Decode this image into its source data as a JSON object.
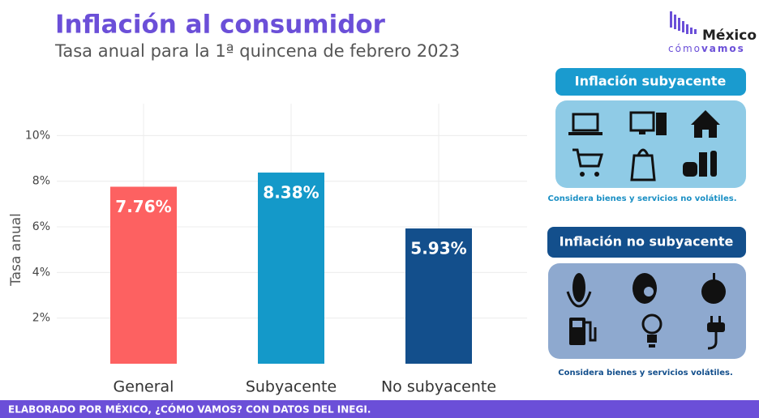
{
  "chart_data": {
    "type": "bar",
    "title": "Inflación al consumidor",
    "subtitle": "Tasa anual para la 1ª quincena de febrero 2023",
    "y_label": "Tasa anual",
    "categories": [
      "General",
      "Subyacente",
      "No subyacente"
    ],
    "values": [
      7.76,
      8.38,
      5.93
    ],
    "value_labels": [
      "7.76%",
      "8.38%",
      "5.93%"
    ],
    "colors": [
      "#fd6161",
      "#1499c9",
      "#134f8c"
    ],
    "ylim": [
      0,
      11.4
    ],
    "yticks": [
      {
        "value": 2,
        "label": "2%"
      },
      {
        "value": 4,
        "label": "4%"
      },
      {
        "value": 6,
        "label": "6%"
      },
      {
        "value": 8,
        "label": "8%"
      },
      {
        "value": 10,
        "label": "10%"
      }
    ],
    "grid": true
  },
  "logo": {
    "name": "México",
    "tagline_1": "cómo",
    "tagline_2": "vamos"
  },
  "panels": [
    {
      "title": "Inflación subyacente",
      "caption": "Considera bienes y servicios no volátiles."
    },
    {
      "title": "Inflación no subyacente",
      "caption": "Considera bienes y servicios volátiles."
    }
  ],
  "footer": "ELABORADO POR MÉXICO, ¿CÓMO VAMOS? CON DATOS DEL INEGI."
}
